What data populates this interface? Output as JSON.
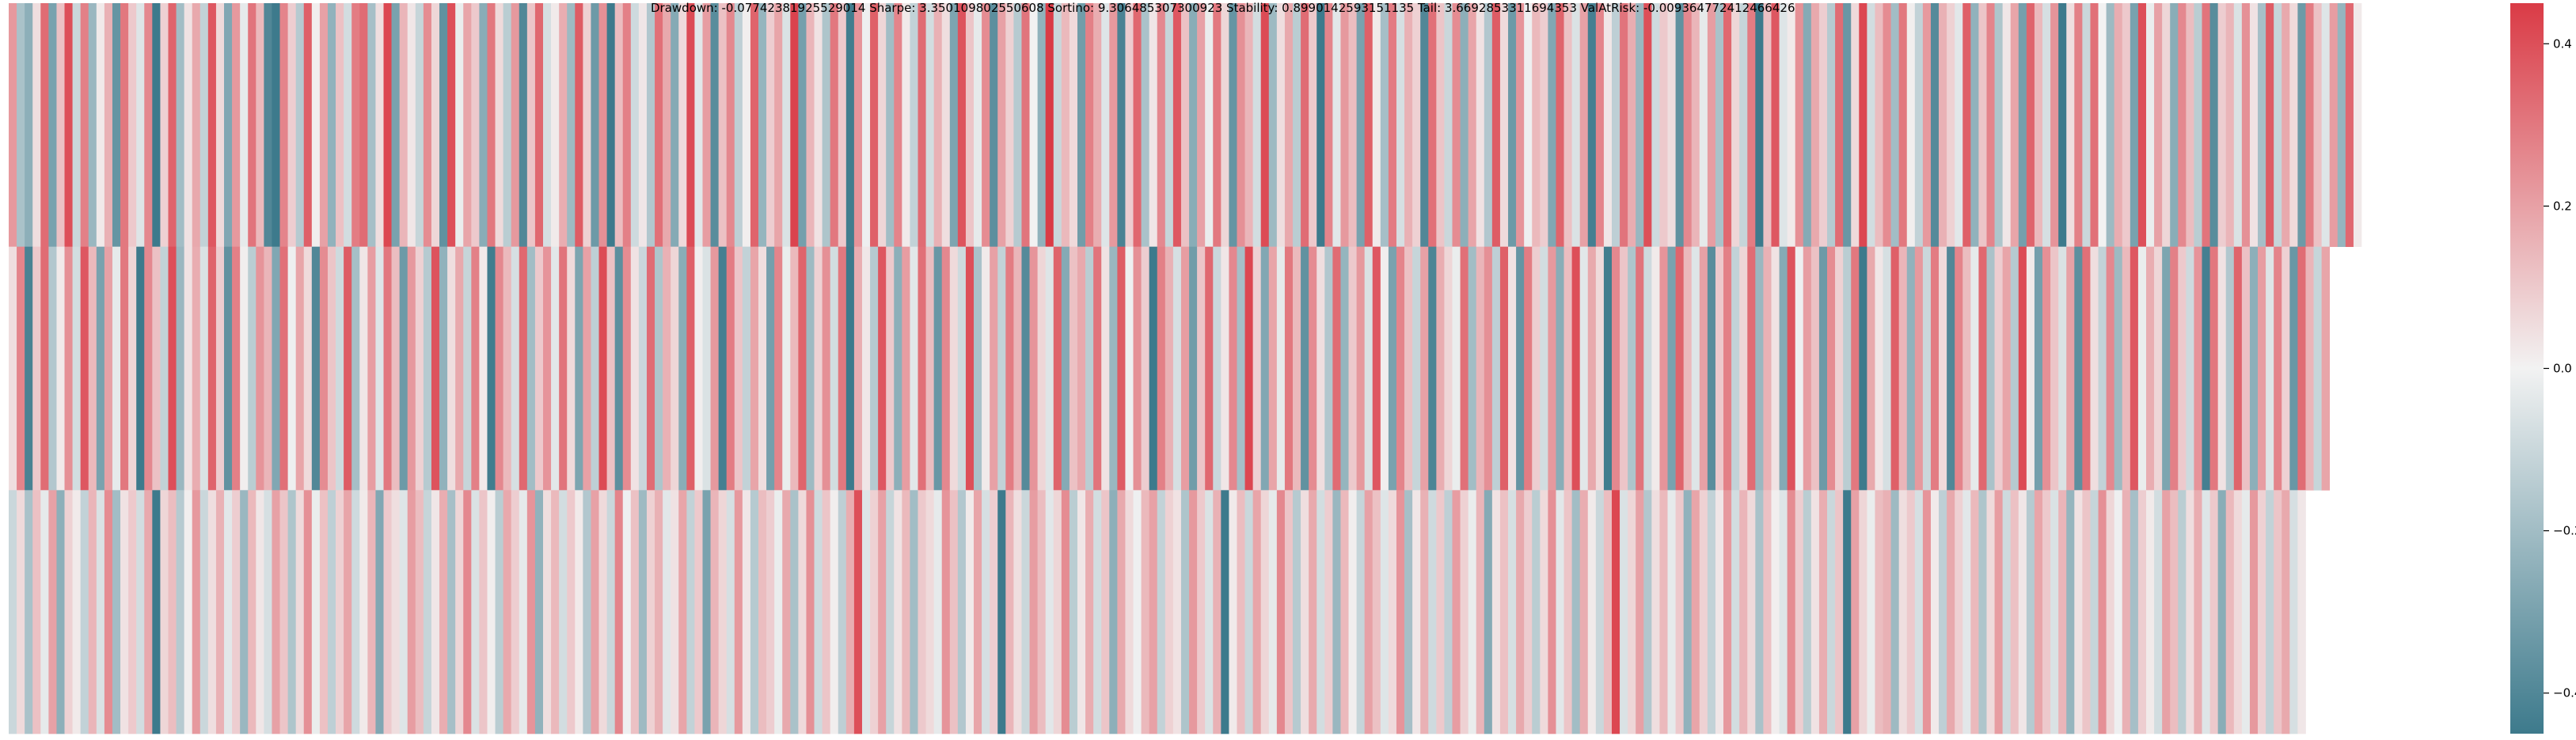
{
  "chart_data": {
    "type": "heatmap",
    "title": "Drawdown: -0.07742381925529014 Sharpe: 3.350109802550608 Sortino: 9.306485307300923 Stability: 0.8990142593151135 Tail: 3.6692853311694353 ValAtRisk: -0.009364772412466426",
    "xlabel": "",
    "ylabel": "",
    "n_rows": 3,
    "n_cols": 300,
    "grid": false,
    "legend": "colorbar-right",
    "colorbar": {
      "vmin": -0.45,
      "vmax": 0.45,
      "ticks": [
        -0.4,
        -0.2,
        0.0,
        0.2,
        0.4
      ],
      "tick_labels": [
        "−0.4",
        "−0.2",
        "0.0",
        "0.2",
        "0.4"
      ]
    },
    "colormap": {
      "negative": "#3d7a8c",
      "center": "#f2f2f2",
      "positive": "#da3b46"
    },
    "rows": [
      [
        0.22,
        -0.18,
        -0.25,
        0.05,
        0.33,
        -0.3,
        0.12,
        0.4,
        -0.1,
        0.28,
        -0.22,
        0.02,
        0.16,
        -0.35,
        0.3,
        0.1,
        -0.05,
        0.26,
        -0.45,
        0.08,
        0.35,
        -0.2,
        0.04,
        0.18,
        -0.12,
        0.38,
        0.06,
        -0.28,
        0.22,
        -0.03,
        0.31,
        0.14,
        -0.4,
        -0.45,
        0.27,
        0.09,
        -0.15,
        0.36,
        0.01,
        0.2,
        -0.24,
        0.12,
        -0.08,
        0.29,
        0.33,
        -0.19,
        0.05,
        0.42,
        -0.3,
        0.15,
        0.03,
        -0.11,
        0.25,
        0.07,
        -0.36,
        0.4,
        -0.02,
        0.19,
        0.1,
        -0.26,
        0.3,
        0.06,
        -0.14,
        0.22,
        -0.4,
        0.11,
        0.34,
        -0.07,
        0.02,
        0.17,
        -0.21,
        0.37,
        0.08,
        -0.33,
        0.24,
        -0.45,
        0.13,
        0.28,
        -0.09,
        0.03,
        -0.16,
        0.32,
        0.18,
        -0.27,
        0.06,
        0.41,
        -0.04,
        0.21,
        -0.38,
        0.12,
        0.26,
        -0.13,
        0.01,
        0.35,
        -0.23,
        0.09,
        0.19,
        -0.06,
        0.43,
        -0.31,
        0.15,
        0.04,
        -0.17,
        0.3,
        0.1,
        -0.44,
        0.23,
        -0.01,
        0.36,
        0.07,
        -0.2,
        0.27,
        0.02,
        -0.12,
        0.33,
        -0.08,
        0.16,
        0.05,
        -0.29,
        0.39,
        0.11,
        -0.03,
        0.25,
        -0.37,
        0.2,
        0.08,
        -0.15,
        0.31,
        0.0,
        -0.24,
        0.45,
        -0.1,
        0.14,
        0.06,
        -0.32,
        0.28,
        0.17,
        -0.05,
        0.22,
        -0.42,
        0.09,
        0.34,
        -0.18,
        0.03,
        0.26,
        -0.11,
        0.38,
        0.12,
        -0.26,
        0.2,
        -0.02,
        0.3,
        0.07,
        -0.35,
        0.24,
        0.15,
        -0.08,
        0.41,
        -0.21,
        0.05,
        0.18,
        -0.14,
        0.33,
        0.1,
        -0.45,
        0.27,
        -0.04,
        0.22,
        0.13,
        -0.3,
        0.36,
        0.02,
        -0.19,
        0.29,
        -0.07,
        0.16,
        0.08,
        -0.4,
        0.32,
        0.11,
        -0.1,
        0.25,
        -0.25,
        0.19,
        0.04,
        -0.16,
        0.37,
        0.06,
        -0.33,
        0.23,
        -0.01,
        0.14,
        0.09,
        -0.28,
        0.35,
        0.12,
        -0.06,
        0.2,
        -0.43,
        0.27,
        0.03,
        -0.13,
        0.31,
        0.17,
        -0.22,
        0.4,
        -0.09,
        0.1,
        0.05,
        -0.36,
        0.26,
        0.15,
        -0.03,
        0.21,
        -0.18,
        0.34,
        0.07,
        -0.11,
        0.29,
        -0.45,
        0.12,
        0.38,
        -0.05,
        0.02,
        0.24,
        -0.27,
        0.18,
        0.09,
        -0.15,
        0.33,
        -0.34,
        0.06,
        0.42,
        -0.08,
        0.13,
        0.25,
        -0.2,
        0.3,
        0.01,
        -0.12,
        0.22,
        -0.39,
        0.16,
        0.08,
        -0.04,
        0.36,
        -0.24,
        0.11,
        0.27,
        -0.17,
        0.03,
        0.19,
        -0.31,
        0.35,
        0.14,
        -0.07,
        0.23,
        -0.45,
        0.05,
        0.28,
        -0.1,
        0.32,
        0.0,
        -0.21,
        0.17,
        0.1,
        -0.3,
        0.4,
        -0.02,
        0.2,
        0.07,
        -0.26,
        0.26,
        0.13,
        -0.14,
        0.31,
        -0.38,
        0.09,
        0.15,
        -0.06,
        0.24,
        0.04,
        -0.19,
        0.37,
        -0.11,
        0.18,
        0.06,
        -0.33,
        0.29,
        0.12,
        -0.05,
        0.21,
        -0.23,
        0.34,
        0.02
      ],
      [
        0.05,
        0.27,
        -0.42,
        0.1,
        0.33,
        -0.16,
        0.02,
        0.24,
        -0.08,
        0.38,
        0.14,
        -0.3,
        0.2,
        -0.03,
        0.3,
        0.07,
        -0.45,
        0.26,
        0.12,
        -0.12,
        0.4,
        -0.22,
        0.04,
        0.17,
        -0.06,
        0.35,
        0.09,
        -0.36,
        0.28,
        0.01,
        -0.14,
        0.23,
        0.15,
        -0.28,
        0.32,
        -0.01,
        0.19,
        0.06,
        -0.4,
        0.25,
        0.11,
        -0.09,
        0.37,
        -0.19,
        0.03,
        0.21,
        -0.05,
        0.3,
        0.13,
        -0.33,
        0.22,
        0.08,
        -0.15,
        0.39,
        -0.24,
        0.05,
        0.18,
        -0.11,
        0.28,
        0.02,
        -0.44,
        0.26,
        0.14,
        -0.07,
        0.34,
        -0.2,
        0.1,
        0.23,
        -0.04,
        0.31,
        0.06,
        -0.29,
        0.2,
        -0.13,
        0.41,
        0.12,
        -0.37,
        0.25,
        0.04,
        -0.1,
        0.33,
        -0.17,
        0.16,
        0.07,
        -0.26,
        0.36,
        0.01,
        -0.06,
        0.22,
        -0.43,
        0.29,
        0.11,
        -0.12,
        0.19,
        0.05,
        -0.31,
        0.27,
        -0.02,
        0.14,
        0.35,
        -0.21,
        0.08,
        0.24,
        -0.08,
        0.3,
        -0.45,
        0.17,
        0.03,
        -0.15,
        0.38,
        0.1,
        -0.25,
        0.21,
        -0.04,
        0.32,
        0.13,
        -0.34,
        0.26,
        0.06,
        -0.09,
        0.4,
        -0.18,
        0.02,
        0.2,
        -0.12,
        0.29,
        0.15,
        -0.39,
        0.23,
        0.07,
        -0.05,
        0.35,
        -0.27,
        0.12,
        0.18,
        -0.14,
        0.31,
        0.04,
        -0.22,
        0.37,
        -0.01,
        0.24,
        0.09,
        -0.45,
        0.28,
        0.16,
        -0.07,
        0.21,
        -0.32,
        0.11,
        0.34,
        -0.1,
        0.03,
        0.26,
        -0.19,
        0.42,
        0.08,
        -0.28,
        0.19,
        -0.03,
        0.3,
        0.14,
        -0.36,
        0.25,
        0.05,
        -0.16,
        0.33,
        -0.23,
        0.1,
        0.22,
        -0.06,
        0.38,
        0.01,
        -0.3,
        0.27,
        0.12,
        -0.11,
        0.2,
        -0.41,
        0.17,
        0.07,
        -0.02,
        0.32,
        -0.2,
        0.15,
        0.24,
        -0.13,
        0.36,
        0.04,
        -0.35,
        0.29,
        0.09,
        -0.08,
        0.22,
        -0.26,
        0.13,
        0.4,
        -0.04,
        0.18,
        0.06,
        -0.44,
        0.26,
        0.11,
        -0.17,
        0.31,
        -0.09,
        0.02,
        0.23,
        -0.3,
        0.35,
        0.14,
        -0.05,
        0.2,
        -0.38,
        0.1,
        0.28,
        -0.12,
        0.07,
        0.33,
        -0.22,
        0.16,
        0.04,
        -0.27,
        0.39,
        -0.01,
        0.21,
        0.12,
        -0.33,
        0.25,
        0.08,
        -0.14,
        0.3,
        -0.45,
        0.18,
        0.03,
        -0.07,
        0.36,
        0.15,
        -0.24,
        0.22,
        -0.1,
        0.29,
        0.06,
        -0.4,
        0.27,
        0.13,
        -0.03,
        0.34,
        -0.18,
        0.09,
        0.19,
        -0.15,
        0.41,
        0.02,
        -0.31,
        0.24,
        0.11,
        -0.06,
        0.2,
        -0.37,
        0.32,
        0.05,
        -0.12,
        0.26,
        -0.21,
        0.14,
        0.38,
        -0.02,
        0.17,
        0.07,
        -0.29,
        0.28,
        0.1,
        -0.09,
        0.23,
        -0.43,
        0.3,
        0.04,
        -0.16,
        0.35,
        0.12,
        -0.25,
        0.21,
        -0.05,
        0.27,
        0.08,
        -0.34,
        0.33,
        0.15,
        -0.11,
        0.19
      ],
      [
        -0.1,
        0.06,
        -0.18,
        0.12,
        -0.03,
        0.2,
        -0.25,
        0.08,
        0.02,
        -0.12,
        0.15,
        -0.06,
        0.25,
        -0.2,
        0.04,
        0.1,
        -0.08,
        0.18,
        -0.45,
        0.07,
        0.13,
        -0.15,
        0.01,
        0.22,
        -0.1,
        0.05,
        0.16,
        -0.04,
        0.09,
        -0.22,
        0.14,
        0.03,
        -0.07,
        0.2,
        0.11,
        -0.17,
        0.06,
        0.24,
        -0.02,
        0.12,
        -0.13,
        0.08,
        0.19,
        -0.09,
        0.02,
        0.15,
        -0.28,
        0.1,
        0.05,
        -0.05,
        0.21,
        0.13,
        -0.11,
        0.03,
        0.17,
        -0.19,
        0.07,
        0.26,
        -0.06,
        0.11,
        0.01,
        -0.14,
        0.18,
        0.09,
        -0.03,
        0.23,
        -0.24,
        0.05,
        0.14,
        -0.08,
        0.1,
        0.02,
        -0.16,
        0.2,
        0.06,
        -0.1,
        0.27,
        -0.01,
        0.12,
        -0.21,
        0.08,
        0.16,
        -0.04,
        0.04,
        0.19,
        -0.12,
        0.1,
        -0.3,
        0.15,
        0.07,
        -0.07,
        0.22,
        0.03,
        -0.15,
        0.13,
        0.09,
        -0.02,
        0.18,
        -0.18,
        0.06,
        0.24,
        -0.09,
        0.11,
        0.01,
        -0.13,
        0.17,
        0.4,
        -0.05,
        0.08,
        0.2,
        -0.11,
        0.04,
        0.14,
        -0.2,
        0.1,
        0.06,
        -0.03,
        0.23,
        0.12,
        -0.16,
        0.02,
        0.19,
        -0.07,
        0.09,
        -0.45,
        0.15,
        0.05,
        -0.1,
        0.21,
        0.13,
        -0.04,
        0.07,
        0.25,
        -0.14,
        0.03,
        0.17,
        -0.08,
        0.11,
        -0.25,
        0.18,
        0.06,
        -0.01,
        0.14,
        0.2,
        -0.12,
        0.08,
        0.04,
        -0.17,
        0.22,
        0.1,
        -0.06,
        0.16,
        -0.45,
        0.02,
        0.13,
        -0.1,
        0.19,
        0.07,
        -0.03,
        0.26,
        0.11,
        -0.15,
        0.05,
        0.18,
        -0.08,
        0.09,
        -0.22,
        0.14,
        0.01,
        -0.11,
        0.2,
        0.12,
        -0.05,
        0.06,
        0.23,
        -0.19,
        0.03,
        0.16,
        -0.09,
        0.1,
        -0.13,
        0.21,
        0.08,
        -0.02,
        0.15,
        -0.27,
        0.04,
        0.12,
        -0.07,
        0.18,
        0.09,
        -0.14,
        0.06,
        0.24,
        -0.04,
        0.11,
        -0.2,
        0.17,
        0.02,
        -0.1,
        0.13,
        0.42,
        -0.06,
        0.07,
        0.2,
        -0.16,
        0.05,
        0.14,
        -0.03,
        0.1,
        -0.24,
        0.19,
        0.08,
        -0.12,
        0.03,
        0.22,
        -0.08,
        0.15,
        0.06,
        -0.18,
        0.12,
        0.01,
        -0.05,
        0.25,
        0.09,
        -0.14,
        0.04,
        0.17,
        -0.1,
        0.11,
        -0.45,
        0.2,
        0.07,
        -0.02,
        0.13,
        0.16,
        -0.21,
        0.05,
        0.1,
        -0.07,
        0.23,
        0.02,
        -0.13,
        0.18,
        0.08,
        -0.04,
        0.14,
        -0.17,
        0.06,
        0.21,
        -0.09,
        0.12,
        0.03,
        -0.15,
        0.19,
        0.1,
        -0.06,
        0.15,
        -0.23,
        0.04,
        0.11,
        -0.11,
        0.24,
        0.07,
        -0.01,
        0.16,
        -0.19,
        0.09,
        0.02,
        -0.08,
        0.2,
        0.13,
        -0.14,
        0.05,
        0.17,
        -0.05,
        0.1,
        -0.26,
        0.14,
        0.06,
        -0.03,
        0.22,
        0.08,
        -0.12,
        0.11,
        0.18,
        -0.07,
        0.03
      ]
    ]
  }
}
